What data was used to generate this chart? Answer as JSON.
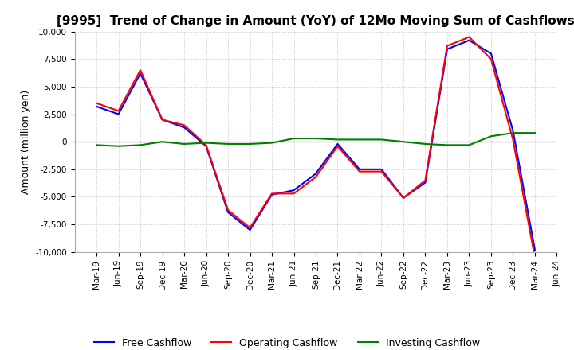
{
  "title": "[9995]  Trend of Change in Amount (YoY) of 12Mo Moving Sum of Cashflows",
  "ylabel": "Amount (million yen)",
  "ylim": [
    -10000,
    10000
  ],
  "yticks": [
    -10000,
    -7500,
    -5000,
    -2500,
    0,
    2500,
    5000,
    7500,
    10000
  ],
  "x_labels": [
    "Mar-19",
    "Jun-19",
    "Sep-19",
    "Dec-19",
    "Mar-20",
    "Jun-20",
    "Sep-20",
    "Dec-20",
    "Mar-21",
    "Jun-21",
    "Sep-21",
    "Dec-21",
    "Mar-22",
    "Jun-22",
    "Sep-22",
    "Dec-22",
    "Mar-23",
    "Jun-23",
    "Sep-23",
    "Dec-23",
    "Mar-24",
    "Jun-24"
  ],
  "operating": [
    3500,
    2800,
    6500,
    2000,
    1500,
    -300,
    -6200,
    -7800,
    -4700,
    -4700,
    -3200,
    -400,
    -2700,
    -2700,
    -5100,
    -3500,
    8700,
    9500,
    7500,
    200,
    -10500,
    null
  ],
  "investing": [
    -300,
    -400,
    -300,
    0,
    -200,
    -100,
    -200,
    -200,
    -100,
    300,
    300,
    200,
    200,
    200,
    0,
    -200,
    -300,
    -300,
    500,
    800,
    800,
    null
  ],
  "free": [
    3200,
    2500,
    6200,
    2000,
    1300,
    -400,
    -6400,
    -8000,
    -4800,
    -4400,
    -2900,
    -200,
    -2500,
    -2500,
    -5100,
    -3700,
    8400,
    9200,
    8000,
    1000,
    -9800,
    null
  ],
  "line_colors": {
    "operating": "#FF0000",
    "investing": "#008000",
    "free": "#0000FF"
  },
  "legend_labels": {
    "operating": "Operating Cashflow",
    "investing": "Investing Cashflow",
    "free": "Free Cashflow"
  },
  "background_color": "#FFFFFF",
  "grid_color": "#AAAAAA",
  "title_fontsize": 11,
  "label_fontsize": 9
}
